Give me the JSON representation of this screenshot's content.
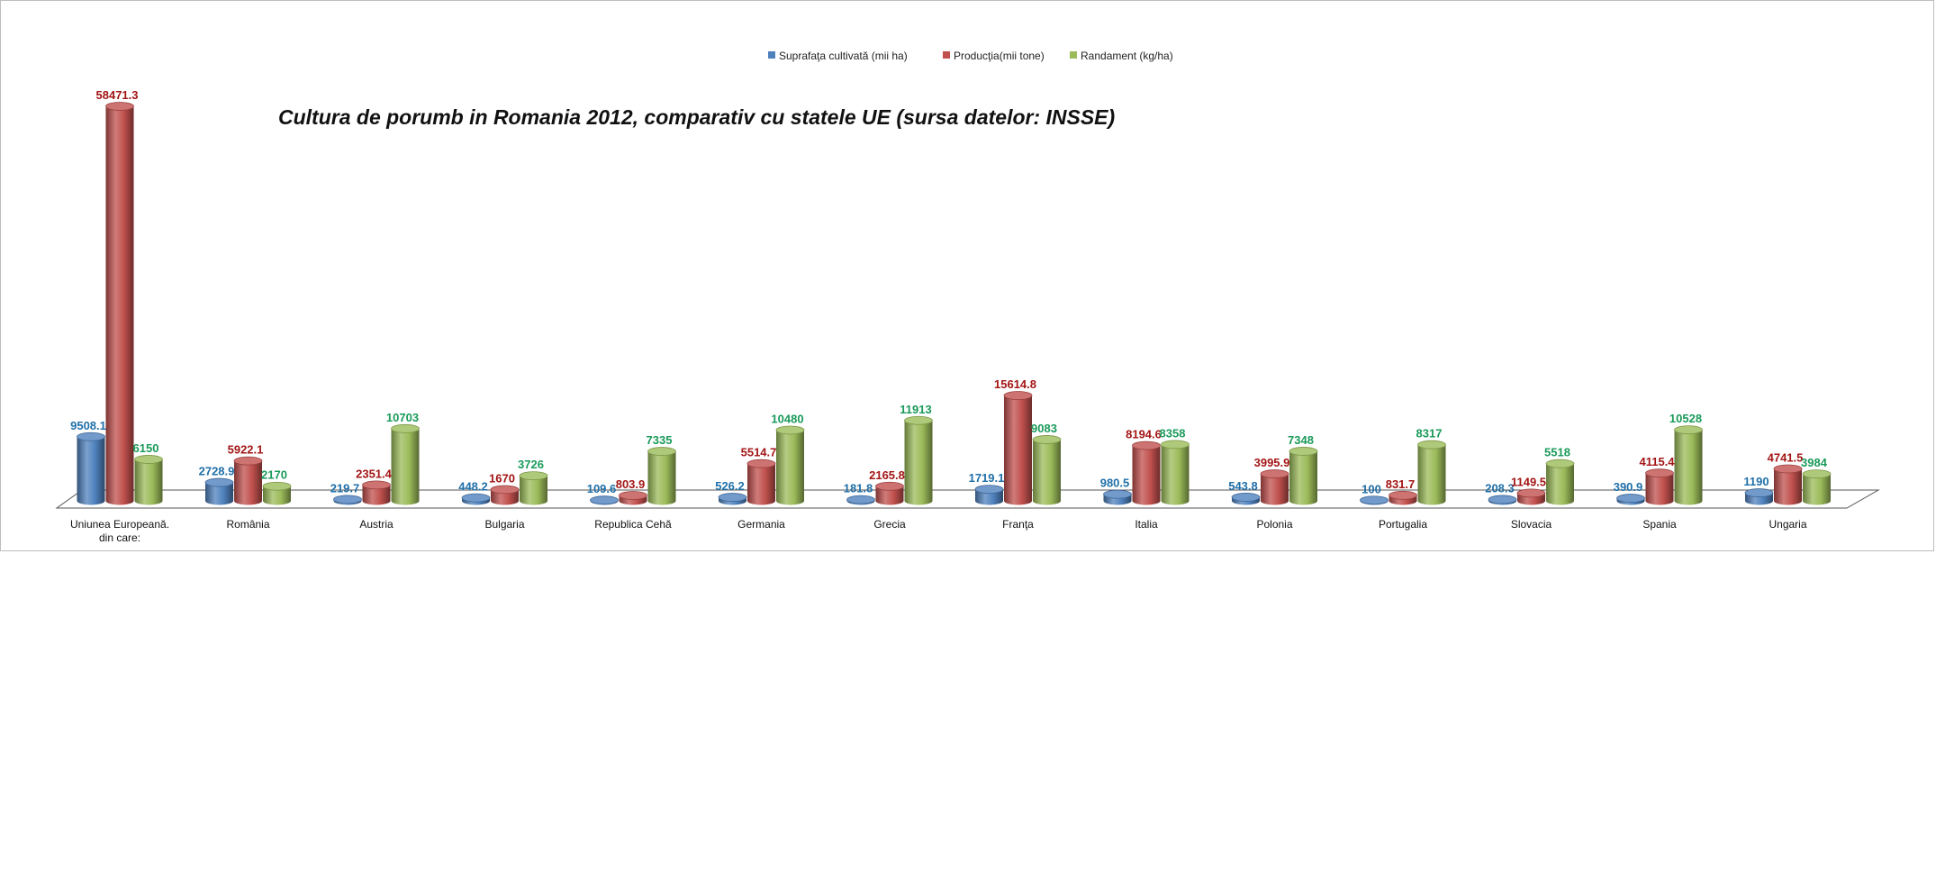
{
  "chart_data": {
    "type": "bar",
    "title": "Cultura de porumb in Romania 2012, comparativ cu statele UE (sursa datelor: INSSE)",
    "categories": [
      [
        "Uniunea Europeană.",
        "din care:"
      ],
      [
        "România"
      ],
      [
        "Austria"
      ],
      [
        "Bulgaria"
      ],
      [
        "Republica Cehă"
      ],
      [
        "Germania"
      ],
      [
        "Grecia"
      ],
      [
        "Franţa"
      ],
      [
        "Italia"
      ],
      [
        "Polonia"
      ],
      [
        "Portugalia"
      ],
      [
        "Slovacia"
      ],
      [
        "Spania"
      ],
      [
        "Ungaria"
      ]
    ],
    "series": [
      {
        "name": "Suprafaţa cultivată (mii ha)",
        "color": "#4f81bd",
        "label_color": "#1f6fa8",
        "values": [
          9508.1,
          2728.9,
          219.7,
          448.2,
          109.6,
          526.2,
          181.8,
          1719.1,
          980.5,
          543.8,
          100,
          208.3,
          390.9,
          1190
        ]
      },
      {
        "name": "Producţia(mii tone)",
        "color": "#c0504d",
        "label_color": "#a31515",
        "values": [
          58471.3,
          5922.1,
          2351.4,
          1670,
          803.9,
          5514.7,
          2165.8,
          15614.8,
          8194.6,
          3995.9,
          831.7,
          1149.5,
          4115.4,
          4741.5
        ]
      },
      {
        "name": "Randament (kg/ha)",
        "color": "#9bbb59",
        "label_color": "#1a9a5a",
        "values": [
          6150,
          2170,
          10703,
          3726,
          7335,
          10480,
          11913,
          9083,
          8358,
          7348,
          8317,
          5518,
          10528,
          3984
        ]
      }
    ],
    "ylim": [
      0,
      58471.3
    ],
    "legend_position": "top-center",
    "grid": false
  }
}
